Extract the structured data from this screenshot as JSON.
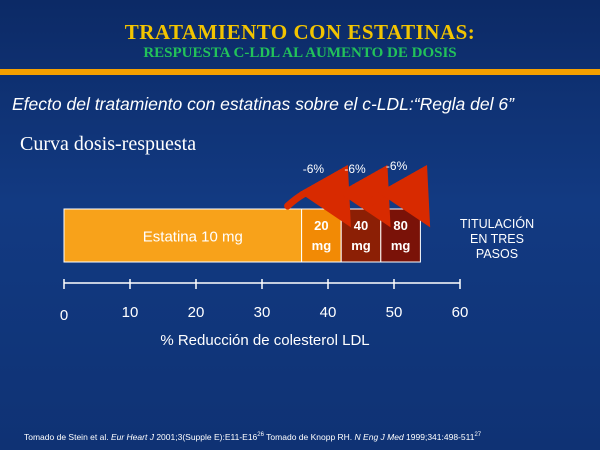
{
  "slide": {
    "title": "TRATAMIENTO CON ESTATINAS:",
    "subtitle": "RESPUESTA C-LDL AL AUMENTO DE DOSIS",
    "effect_text": "Efecto del tratamiento con estatinas sobre el c-LDL:“Regla del 6”",
    "curve_title": "Curva dosis-respuesta",
    "titulacion_lines": [
      "TITULACIÓN",
      "EN TRES",
      "PASOS"
    ],
    "footnote": {
      "part1": "Tomado de Stein et al. ",
      "journal1": "Eur Heart J",
      "part2": " 2001;3(Supple E):E11-E16",
      "sup1": "26",
      "part3": " Tomado de Knopp RH. ",
      "journal2": "N Eng J Med",
      "part4": " 1999;341:498-511",
      "sup2": "27"
    }
  },
  "colors": {
    "title": "#f2c400",
    "subtitle": "#22c25a",
    "rule": "#f5a000",
    "base_segment": "#f8a21a",
    "step_segments": [
      "#f28a05",
      "#8c1f05",
      "#7a1208"
    ],
    "arrow": "#d82a00",
    "axis": "#ffffff"
  },
  "chart_data": {
    "type": "bar",
    "orientation": "horizontal",
    "xlim": [
      0,
      60
    ],
    "xticks": [
      "0",
      "10",
      "20",
      "30",
      "40",
      "50",
      "60"
    ],
    "xtick_values": [
      0,
      10,
      20,
      30,
      40,
      50,
      60
    ],
    "xlabel": "% Reducción de colesterol LDL",
    "segments": [
      {
        "label": "Estatina 10 mg",
        "start": 0,
        "end": 36
      },
      {
        "label_top": "20",
        "label_bottom": "mg",
        "start": 36,
        "end": 42
      },
      {
        "label_top": "40",
        "label_bottom": "mg",
        "start": 42,
        "end": 48
      },
      {
        "label_top": "80",
        "label_bottom": "mg",
        "start": 48,
        "end": 54
      }
    ],
    "annotations": [
      {
        "text": "-6%",
        "from": 36,
        "to": 42
      },
      {
        "text": "-6%",
        "from": 42,
        "to": 48
      },
      {
        "text": "-6%",
        "from": 48,
        "to": 54
      }
    ]
  }
}
